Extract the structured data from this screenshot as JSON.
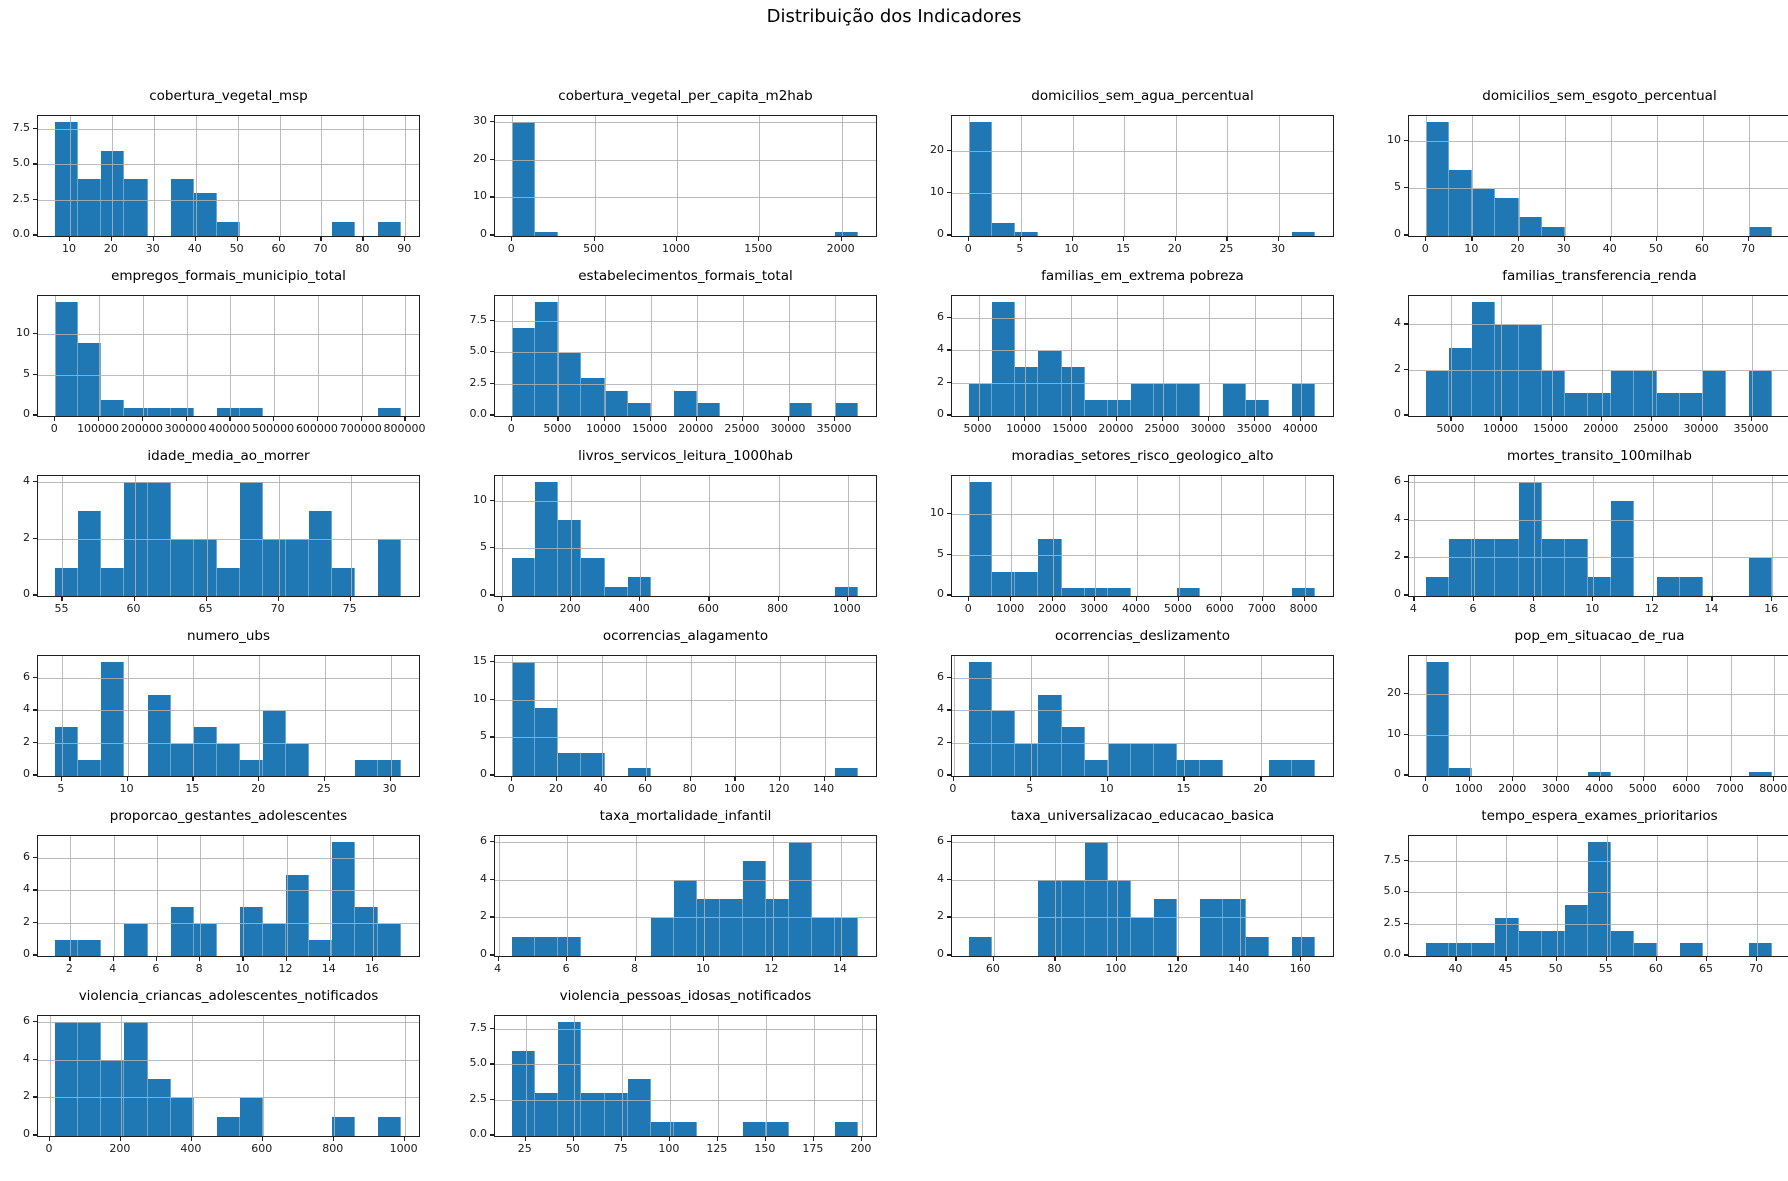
{
  "page": {
    "title": "Distribuição dos Indicadores"
  },
  "style": {
    "bar_color": "#1f77b4",
    "grid_color": "#b0b0b0",
    "spine_color": "#1f1f1f",
    "background": "#ffffff"
  },
  "chart_data": [
    {
      "type": "histogram",
      "title": "cobertura_vegetal_msp",
      "bins": 15,
      "x_range": [
        6.5,
        89
      ],
      "counts": [
        8,
        4,
        6,
        4,
        0,
        4,
        3,
        1,
        0,
        0,
        0,
        0,
        1,
        0,
        1
      ],
      "x_ticks": [
        "10",
        "20",
        "30",
        "40",
        "50",
        "60",
        "70",
        "80",
        "90"
      ],
      "y_ticks": [
        "0.0",
        "2.5",
        "5.0",
        "7.5"
      ]
    },
    {
      "type": "histogram",
      "title": "cobertura_vegetal_per_capita_m2hab",
      "bins": 15,
      "x_range": [
        0,
        2100
      ],
      "counts": [
        30,
        1,
        0,
        0,
        0,
        0,
        0,
        0,
        0,
        0,
        0,
        0,
        0,
        0,
        1
      ],
      "x_ticks": [
        "0",
        "500",
        "1000",
        "1500",
        "2000"
      ],
      "y_ticks": [
        "0",
        "10",
        "20",
        "30"
      ]
    },
    {
      "type": "histogram",
      "title": "domicilios_sem_agua_percentual",
      "bins": 15,
      "x_range": [
        0,
        33.5
      ],
      "counts": [
        27,
        3,
        1,
        0,
        0,
        0,
        0,
        0,
        0,
        0,
        0,
        0,
        0,
        0,
        1
      ],
      "x_ticks": [
        "0",
        "5",
        "10",
        "15",
        "20",
        "25",
        "30"
      ],
      "y_ticks": [
        "0",
        "10",
        "20"
      ]
    },
    {
      "type": "histogram",
      "title": "domicilios_sem_esgoto_percentual",
      "bins": 15,
      "x_range": [
        0,
        75
      ],
      "counts": [
        12,
        7,
        5,
        4,
        2,
        1,
        0,
        0,
        0,
        0,
        0,
        0,
        0,
        0,
        1
      ],
      "x_ticks": [
        "0",
        "10",
        "20",
        "30",
        "40",
        "50",
        "60",
        "70"
      ],
      "y_ticks": [
        "0",
        "5",
        "10"
      ]
    },
    {
      "type": "histogram",
      "title": "empregos_formais_municipio_total",
      "bins": 15,
      "x_range": [
        0,
        790000
      ],
      "counts": [
        14,
        9,
        2,
        1,
        1,
        1,
        0,
        1,
        1,
        0,
        0,
        0,
        0,
        0,
        1
      ],
      "x_ticks": [
        "0",
        "100000",
        "200000",
        "300000",
        "400000",
        "500000",
        "600000",
        "700000",
        "800000"
      ],
      "y_ticks": [
        "0",
        "5",
        "10"
      ]
    },
    {
      "type": "histogram",
      "title": "estabelecimentos_formais_total",
      "bins": 15,
      "x_range": [
        0,
        37500
      ],
      "counts": [
        7,
        9,
        5,
        3,
        2,
        1,
        0,
        2,
        1,
        0,
        0,
        0,
        1,
        0,
        1
      ],
      "x_ticks": [
        "0",
        "5000",
        "10000",
        "15000",
        "20000",
        "25000",
        "30000",
        "35000"
      ],
      "y_ticks": [
        "0.0",
        "2.5",
        "5.0",
        "7.5"
      ]
    },
    {
      "type": "histogram",
      "title": "familias_em_extrema pobreza",
      "bins": 15,
      "x_range": [
        4000,
        41500
      ],
      "counts": [
        2,
        7,
        3,
        4,
        3,
        1,
        1,
        2,
        2,
        2,
        0,
        2,
        1,
        0,
        2
      ],
      "x_ticks": [
        "5000",
        "10000",
        "15000",
        "20000",
        "25000",
        "30000",
        "35000",
        "40000"
      ],
      "y_ticks": [
        "0",
        "2",
        "4",
        "6"
      ]
    },
    {
      "type": "histogram",
      "title": "familias_transferencia_renda",
      "bins": 15,
      "x_range": [
        2500,
        37000
      ],
      "counts": [
        2,
        3,
        5,
        4,
        4,
        2,
        1,
        1,
        2,
        2,
        1,
        1,
        2,
        0,
        2
      ],
      "x_ticks": [
        "5000",
        "10000",
        "15000",
        "20000",
        "25000",
        "30000",
        "35000"
      ],
      "y_ticks": [
        "0",
        "2",
        "4"
      ]
    },
    {
      "type": "histogram",
      "title": "idade_media_ao_morrer",
      "bins": 15,
      "x_range": [
        54.5,
        78.5
      ],
      "counts": [
        1,
        3,
        1,
        4,
        4,
        2,
        2,
        1,
        4,
        2,
        2,
        3,
        1,
        0,
        2
      ],
      "x_ticks": [
        "55",
        "60",
        "65",
        "70",
        "75"
      ],
      "y_ticks": [
        "0",
        "2",
        "4"
      ]
    },
    {
      "type": "histogram",
      "title": "livros_servicos_leitura_1000hab",
      "bins": 15,
      "x_range": [
        30,
        1030
      ],
      "counts": [
        4,
        12,
        8,
        4,
        1,
        2,
        0,
        0,
        0,
        0,
        0,
        0,
        0,
        0,
        1
      ],
      "x_ticks": [
        "0",
        "200",
        "400",
        "600",
        "800",
        "1000"
      ],
      "y_ticks": [
        "0",
        "5",
        "10"
      ]
    },
    {
      "type": "histogram",
      "title": "moradias_setores_risco_geologico_alto",
      "bins": 15,
      "x_range": [
        0,
        8250
      ],
      "counts": [
        14,
        3,
        3,
        7,
        1,
        1,
        1,
        0,
        0,
        1,
        0,
        0,
        0,
        0,
        1
      ],
      "x_ticks": [
        "0",
        "1000",
        "2000",
        "3000",
        "4000",
        "5000",
        "6000",
        "7000",
        "8000"
      ],
      "y_ticks": [
        "0",
        "5",
        "10"
      ]
    },
    {
      "type": "histogram",
      "title": "mortes_transito_100milhab",
      "bins": 15,
      "x_range": [
        4.4,
        16
      ],
      "counts": [
        1,
        3,
        3,
        3,
        6,
        3,
        3,
        1,
        5,
        0,
        1,
        1,
        0,
        0,
        2
      ],
      "x_ticks": [
        "4",
        "6",
        "8",
        "10",
        "12",
        "14",
        "16"
      ],
      "y_ticks": [
        "0",
        "2",
        "4",
        "6"
      ]
    },
    {
      "type": "histogram",
      "title": "numero_ubs",
      "bins": 15,
      "x_range": [
        4.5,
        30.8
      ],
      "counts": [
        3,
        1,
        7,
        0,
        5,
        2,
        3,
        2,
        1,
        4,
        2,
        0,
        0,
        1,
        1
      ],
      "x_ticks": [
        "5",
        "10",
        "15",
        "20",
        "25",
        "30"
      ],
      "y_ticks": [
        "0",
        "2",
        "4",
        "6"
      ]
    },
    {
      "type": "histogram",
      "title": "ocorrencias_alagamento",
      "bins": 15,
      "x_range": [
        0,
        155
      ],
      "counts": [
        15,
        9,
        3,
        3,
        0,
        1,
        0,
        0,
        0,
        0,
        0,
        0,
        0,
        0,
        1
      ],
      "x_ticks": [
        "0",
        "20",
        "40",
        "60",
        "80",
        "100",
        "120",
        "140"
      ],
      "y_ticks": [
        "0",
        "5",
        "10",
        "15"
      ]
    },
    {
      "type": "histogram",
      "title": "ocorrencias_deslizamento",
      "bins": 15,
      "x_range": [
        1,
        23.5
      ],
      "counts": [
        7,
        4,
        2,
        5,
        3,
        1,
        2,
        2,
        2,
        1,
        1,
        0,
        0,
        1,
        1
      ],
      "x_ticks": [
        "0",
        "5",
        "10",
        "15",
        "20",
        "25"
      ],
      "y_ticks": [
        "0",
        "2",
        "4",
        "6"
      ]
    },
    {
      "type": "histogram",
      "title": "pop_em_situacao_de_rua",
      "bins": 15,
      "x_range": [
        0,
        7950
      ],
      "counts": [
        28,
        2,
        0,
        0,
        0,
        0,
        0,
        1,
        0,
        0,
        0,
        0,
        0,
        0,
        1
      ],
      "x_ticks": [
        "0",
        "1000",
        "2000",
        "3000",
        "4000",
        "5000",
        "6000",
        "7000",
        "8000"
      ],
      "y_ticks": [
        "0",
        "10",
        "20"
      ]
    },
    {
      "type": "histogram",
      "title": "proporcao_gestantes_adolescentes",
      "bins": 15,
      "x_range": [
        1.3,
        17.3
      ],
      "counts": [
        1,
        1,
        0,
        2,
        0,
        3,
        2,
        0,
        3,
        2,
        5,
        1,
        7,
        3,
        2
      ],
      "x_ticks": [
        "2",
        "4",
        "6",
        "8",
        "10",
        "12",
        "14",
        "16"
      ],
      "y_ticks": [
        "0",
        "2",
        "4",
        "6"
      ]
    },
    {
      "type": "histogram",
      "title": "taxa_mortalidade_infantil",
      "bins": 15,
      "x_range": [
        4.4,
        14.5
      ],
      "counts": [
        1,
        1,
        1,
        0,
        0,
        0,
        2,
        4,
        3,
        3,
        5,
        3,
        6,
        2,
        2
      ],
      "x_ticks": [
        "4",
        "6",
        "8",
        "10",
        "12",
        "14"
      ],
      "y_ticks": [
        "0",
        "2",
        "4",
        "6"
      ]
    },
    {
      "type": "histogram",
      "title": "taxa_universalizacao_educacao_basica",
      "bins": 15,
      "x_range": [
        52,
        164.5
      ],
      "counts": [
        1,
        0,
        0,
        4,
        4,
        6,
        4,
        2,
        3,
        0,
        3,
        3,
        1,
        0,
        1
      ],
      "x_ticks": [
        "60",
        "80",
        "100",
        "120",
        "140",
        "160"
      ],
      "y_ticks": [
        "0",
        "2",
        "4",
        "6"
      ]
    },
    {
      "type": "histogram",
      "title": "tempo_espera_exames_prioritarios",
      "bins": 15,
      "x_range": [
        37,
        71.5
      ],
      "counts": [
        1,
        1,
        1,
        3,
        2,
        2,
        4,
        9,
        2,
        1,
        0,
        1,
        0,
        0,
        1
      ],
      "x_ticks": [
        "40",
        "45",
        "50",
        "55",
        "60",
        "65",
        "70"
      ],
      "y_ticks": [
        "0.0",
        "2.5",
        "5.0",
        "7.5"
      ]
    },
    {
      "type": "histogram",
      "title": "violencia_criancas_adolescentes_notificados",
      "bins": 15,
      "x_range": [
        15,
        990
      ],
      "counts": [
        6,
        6,
        4,
        6,
        3,
        2,
        0,
        1,
        2,
        0,
        0,
        0,
        1,
        0,
        1
      ],
      "x_ticks": [
        "0",
        "200",
        "400",
        "600",
        "800",
        "1000"
      ],
      "y_ticks": [
        "0",
        "2",
        "4",
        "6"
      ]
    },
    {
      "type": "histogram",
      "title": "violencia_pessoas_idosas_notificados",
      "bins": 15,
      "x_range": [
        18,
        198
      ],
      "counts": [
        6,
        3,
        8,
        3,
        3,
        4,
        1,
        1,
        0,
        0,
        1,
        1,
        0,
        0,
        1
      ],
      "x_ticks": [
        "25",
        "50",
        "75",
        "100",
        "125",
        "150",
        "175",
        "200"
      ],
      "y_ticks": [
        "0.0",
        "2.5",
        "5.0",
        "7.5"
      ]
    }
  ]
}
